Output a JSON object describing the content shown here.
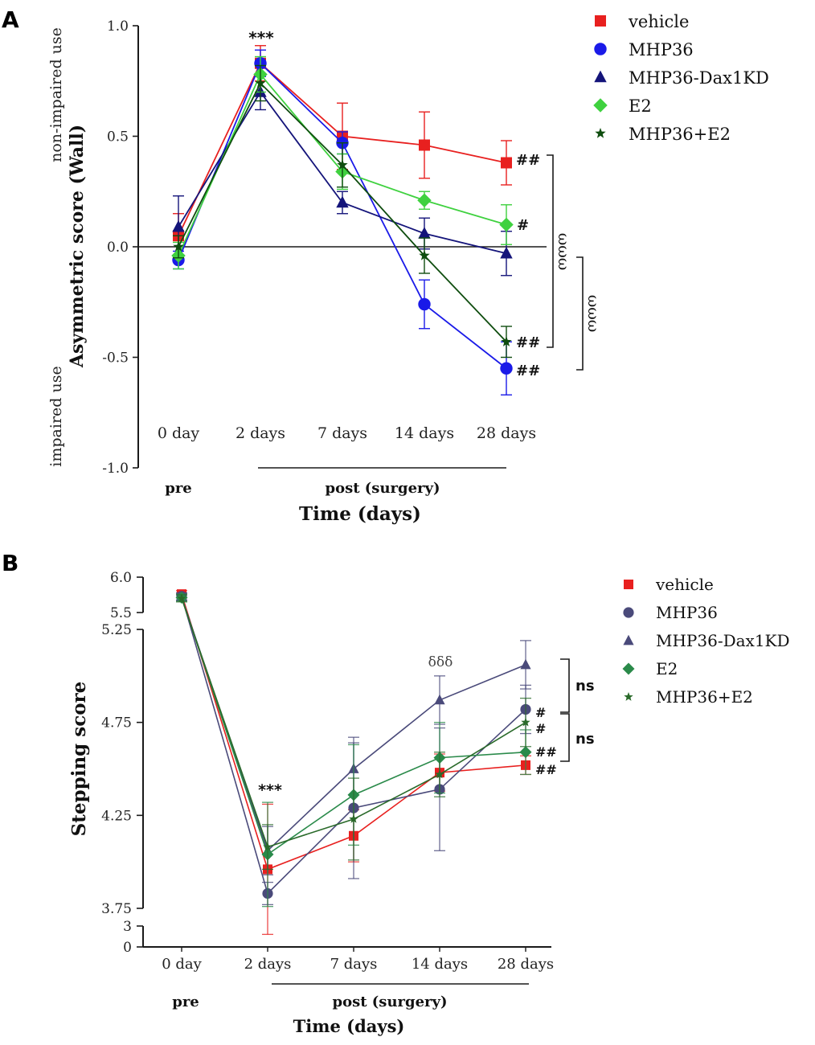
{
  "colors": {
    "vehicle": "#e8201f",
    "MHP36": "#1a1ae8",
    "MHP36-Dax1KD": "#14147a",
    "E2": "#3fd13f",
    "MHP36+E2": "#0f4d0f",
    "axis": "#1a1a1a",
    "B_vehicle": "#e8201f",
    "B_MHP36": "#4a4a7a",
    "B_Dax": "#4a4a7a",
    "B_E2": "#2a8a4a",
    "B_comb": "#2a6a2a"
  },
  "icons": {
    "vehicle": "square-marker",
    "MHP36": "circle-marker",
    "MHP36-Dax1KD": "triangle-marker",
    "E2": "diamond-marker",
    "MHP36+E2": "star-marker"
  },
  "panel_labels": {
    "a": "A",
    "b": "B"
  },
  "chart_data": [
    {
      "type": "line",
      "panel": "A",
      "title": "",
      "ylabel": "Asymmetric score (Wall)",
      "ylabel_upper": "non-impaired use",
      "ylabel_lower": "impaired use",
      "xlabel": "Time (days)",
      "x_group_pre": "pre",
      "x_group_post": "post (surgery)",
      "categories": [
        "0 day",
        "2 days",
        "7 days",
        "14 days",
        "28 days"
      ],
      "yticks": [
        "1.0",
        "0.5",
        "0.0",
        "-0.5",
        "-1.0"
      ],
      "ytick_values": [
        1.0,
        0.5,
        0.0,
        -0.5,
        -1.0
      ],
      "ylim": [
        -1.0,
        1.0
      ],
      "legend_position": "top-right",
      "series": [
        {
          "name": "vehicle",
          "values": [
            0.05,
            0.83,
            0.5,
            0.46,
            0.38
          ],
          "errors": [
            0.1,
            0.08,
            0.15,
            0.15,
            0.1
          ]
        },
        {
          "name": "MHP36",
          "values": [
            -0.06,
            0.83,
            0.47,
            -0.26,
            -0.55
          ],
          "errors": [
            0.04,
            0.06,
            0.05,
            0.11,
            0.12
          ]
        },
        {
          "name": "MHP36-Dax1KD",
          "values": [
            0.09,
            0.7,
            0.2,
            0.06,
            -0.03
          ],
          "errors": [
            0.14,
            0.08,
            0.05,
            0.07,
            0.1
          ]
        },
        {
          "name": "E2",
          "values": [
            -0.04,
            0.78,
            0.34,
            0.21,
            0.1
          ],
          "errors": [
            0.06,
            0.08,
            0.08,
            0.04,
            0.09
          ]
        },
        {
          "name": "MHP36+E2",
          "values": [
            0.0,
            0.74,
            0.37,
            -0.04,
            -0.43
          ],
          "errors": [
            0.05,
            0.08,
            0.1,
            0.08,
            0.07
          ]
        }
      ],
      "annotations": {
        "stars": "***",
        "vehicle_end": "##",
        "E2_end": "#",
        "comb_end": "##",
        "MHP36_end": "##",
        "bracket1": "ωωω",
        "bracket2": "ωωω"
      }
    },
    {
      "type": "line",
      "panel": "B",
      "title": "",
      "ylabel": "Stepping score",
      "xlabel": "Time (days)",
      "x_group_pre": "pre",
      "x_group_post": "post (surgery)",
      "categories": [
        "0 day",
        "2 days",
        "7 days",
        "14 days",
        "28 days"
      ],
      "yticks_upper": [
        "6.0",
        "5.5"
      ],
      "ytick_upper_values": [
        6.0,
        5.5
      ],
      "yticks_main": [
        "5.25",
        "4.75",
        "4.25",
        "3.75"
      ],
      "ytick_main_values": [
        5.25,
        4.75,
        4.25,
        3.75
      ],
      "yticks_lower": [
        "3",
        "0"
      ],
      "ytick_lower_values": [
        3,
        0
      ],
      "ylim_main": [
        3.75,
        5.25
      ],
      "legend_position": "top-right",
      "series": [
        {
          "name": "vehicle",
          "values": [
            5.76,
            3.96,
            4.14,
            4.48,
            4.52
          ],
          "errors": [
            0.05,
            0.35,
            0.14,
            0.1,
            0.05
          ]
        },
        {
          "name": "MHP36",
          "values": [
            5.73,
            3.83,
            4.29,
            4.39,
            4.82
          ],
          "errors": [
            0.05,
            0.06,
            0.38,
            0.33,
            0.13
          ]
        },
        {
          "name": "MHP36-Dax1KD",
          "values": [
            5.72,
            4.06,
            4.5,
            4.87,
            5.06
          ],
          "errors": [
            0.05,
            0.13,
            0.14,
            0.13,
            0.13
          ]
        },
        {
          "name": "E2",
          "values": [
            5.71,
            4.04,
            4.36,
            4.56,
            4.59
          ],
          "errors": [
            0.05,
            0.28,
            0.27,
            0.19,
            0.12
          ]
        },
        {
          "name": "MHP36+E2",
          "values": [
            5.7,
            4.08,
            4.23,
            4.47,
            4.75
          ],
          "errors": [
            0.05,
            0.12,
            0.22,
            0.12,
            0.13
          ]
        }
      ],
      "annotations": {
        "stars": "***",
        "delta": "δδδ",
        "MHP36_end": "#",
        "comb_end": "#",
        "E2_end": "##",
        "vehicle_end": "##",
        "ns1": "ns",
        "ns2": "ns"
      }
    }
  ]
}
